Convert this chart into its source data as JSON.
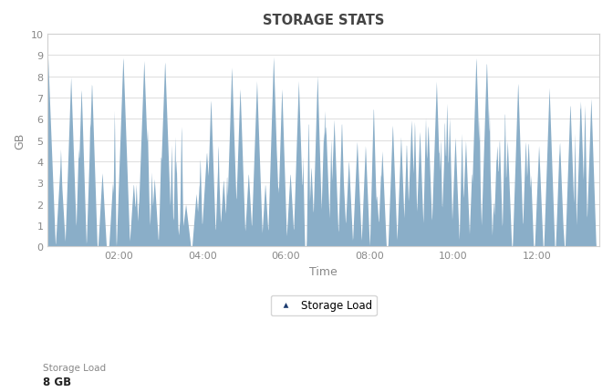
{
  "title": "STORAGE STATS",
  "xlabel": "Time",
  "ylabel": "GB",
  "ylim": [
    0,
    10
  ],
  "yticks": [
    0,
    1,
    2,
    3,
    4,
    5,
    6,
    7,
    8,
    9,
    10
  ],
  "xtick_labels": [
    "02:00",
    "04:00",
    "06:00",
    "08:00",
    "10:00",
    "12:00"
  ],
  "xtick_positions": [
    2,
    4,
    6,
    8,
    10,
    12
  ],
  "xlim": [
    0.3,
    13.5
  ],
  "fill_color": "#8aaec8",
  "bg_color": "#ffffff",
  "plot_bg_color": "#ffffff",
  "grid_color": "#d8d8d8",
  "title_fontsize": 10.5,
  "axis_label_fontsize": 9,
  "tick_fontsize": 8,
  "legend_label": "Storage Load",
  "legend_marker": "^",
  "legend_marker_color": "#1a3a6e",
  "bottom_label1": "Storage Load",
  "bottom_label2": "8 GB",
  "text_color": "#888888",
  "title_color": "#444444"
}
